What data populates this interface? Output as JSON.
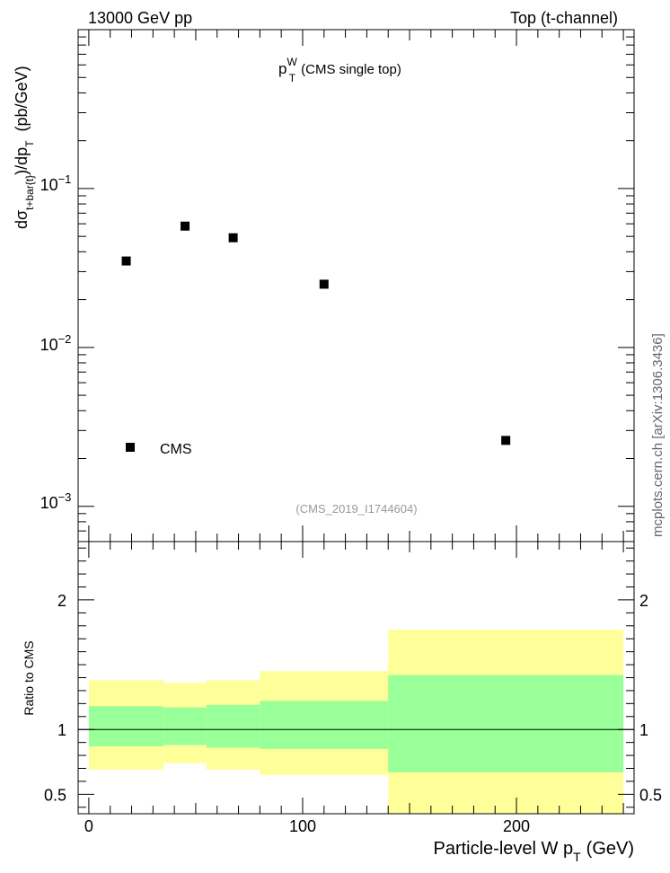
{
  "header": {
    "left": "13000 GeV pp",
    "right": "Top (t-channel)"
  },
  "plot_title": {
    "main": "p",
    "sup": "W",
    "sub": "T",
    "rest": "(CMS single top)"
  },
  "ylabel_main": {
    "d": "dσ",
    "sub": "t+bar{t}",
    "mid": ")/dp",
    "sub2": "T",
    "unit": "(pb/GeV)"
  },
  "ylabel_ratio": "Ratio to CMS",
  "xlabel": {
    "main": "Particle-level W p",
    "sub": "T",
    "unit": "(GeV)"
  },
  "legend": {
    "label": "CMS"
  },
  "analysis_id": "(CMS_2019_I1744604)",
  "side_text": "mcplots.cern.ch [arXiv:1306.3436]",
  "chart_data": [
    {
      "type": "scatter",
      "yscale": "log",
      "xlim": [
        -5,
        255
      ],
      "ylim": [
        0.0006,
        1.0
      ],
      "ytick_labels": [
        "10^-3",
        "10^-2",
        "10^-1"
      ],
      "series": [
        {
          "name": "CMS",
          "x": [
            17.5,
            45,
            67.5,
            110,
            195
          ],
          "y": [
            0.035,
            0.058,
            0.049,
            0.025,
            0.0026
          ]
        }
      ]
    },
    {
      "type": "area",
      "xlim": [
        -5,
        255
      ],
      "ylim": [
        0.35,
        2.45
      ],
      "yticks": [
        0.5,
        1,
        2
      ],
      "xticks": [
        0,
        100,
        200
      ],
      "reference_line": 1,
      "bins": [
        [
          0,
          35
        ],
        [
          35,
          55
        ],
        [
          55,
          80
        ],
        [
          80,
          140
        ],
        [
          140,
          250
        ]
      ],
      "band_inner": {
        "color": "#99ff99",
        "low": [
          0.87,
          0.88,
          0.86,
          0.85,
          0.67
        ],
        "high": [
          1.18,
          1.17,
          1.19,
          1.22,
          1.42
        ]
      },
      "band_outer": {
        "color": "#ffff99",
        "low": [
          0.69,
          0.74,
          0.69,
          0.65,
          0.33
        ],
        "high": [
          1.38,
          1.36,
          1.38,
          1.45,
          1.77
        ]
      }
    }
  ]
}
